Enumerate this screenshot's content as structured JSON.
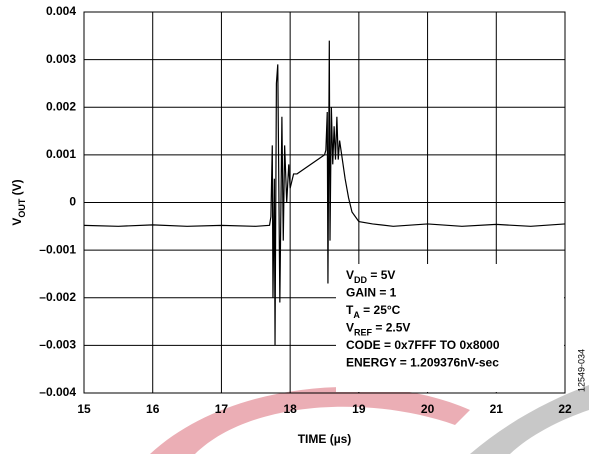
{
  "chart_data": {
    "type": "line",
    "xlabel": "TIME (µs)",
    "ylabel": [
      "V",
      "OUT",
      " (V)"
    ],
    "side_label": "12549-034",
    "annotations": [
      [
        "V",
        "DD",
        " = 5V"
      ],
      [
        "GAIN = 1"
      ],
      [
        "T",
        "A",
        " = 25°C"
      ],
      [
        "V",
        "REF",
        " = 2.5V"
      ],
      [
        "CODE  = 0x7FFF TO 0x8000"
      ],
      [
        "ENERGY = 1.209376nV-sec"
      ]
    ],
    "xlim": [
      15,
      22
    ],
    "xticks": [
      15,
      16,
      17,
      18,
      19,
      20,
      21,
      22
    ],
    "ylim": [
      -0.004,
      0.004
    ],
    "yticks": [
      0.004,
      0.003,
      0.002,
      0.001,
      0,
      {
        "value": -0.001,
        "label": "–0.001"
      },
      {
        "value": -0.002,
        "label": "–0.002"
      },
      {
        "value": -0.003,
        "label": "–0.003"
      },
      {
        "value": -0.004,
        "label": "–0.004"
      }
    ],
    "grid": true,
    "series": [
      {
        "color": "#000000",
        "x": [
          15,
          15.5,
          16,
          16.5,
          17,
          17.5,
          17.7,
          17.72,
          17.74,
          17.75,
          17.77,
          17.78,
          17.8,
          17.82,
          17.85,
          17.88,
          17.9,
          17.92,
          17.95,
          17.98,
          18.0,
          18.05,
          18.1,
          18.2,
          18.3,
          18.4,
          18.5,
          18.52,
          18.54,
          18.55,
          18.57,
          18.58,
          18.6,
          18.62,
          18.64,
          18.66,
          18.68,
          18.7,
          18.72,
          18.75,
          18.8,
          18.85,
          18.9,
          19.0,
          19.2,
          19.5,
          20,
          20.5,
          21,
          21.5,
          22
        ],
        "values": [
          -0.00048,
          -0.0005,
          -0.00047,
          -0.0005,
          -0.00048,
          -0.0005,
          -0.00048,
          -0.0003,
          0.0012,
          -0.002,
          0.0005,
          -0.003,
          0.0025,
          0.0029,
          -0.0021,
          0.0018,
          -0.0008,
          0.0012,
          0.0,
          0.0008,
          0.0003,
          0.0006,
          0.0006,
          0.0007,
          0.0008,
          0.0009,
          0.001,
          0.0011,
          0.0019,
          -0.0017,
          0.0034,
          -0.0008,
          0.002,
          0.0008,
          0.0016,
          0.0009,
          0.0018,
          0.0009,
          0.0013,
          0.001,
          0.0005,
          0.0001,
          -0.0002,
          -0.0004,
          -0.00045,
          -0.0005,
          -0.00045,
          -0.0005,
          -0.00046,
          -0.0005,
          -0.00045
        ]
      }
    ]
  }
}
